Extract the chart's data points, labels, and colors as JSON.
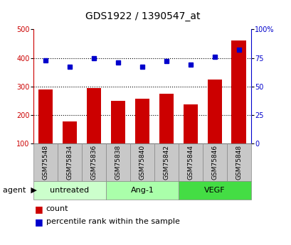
{
  "title": "GDS1922 / 1390547_at",
  "categories": [
    "GSM75548",
    "GSM75834",
    "GSM75836",
    "GSM75838",
    "GSM75840",
    "GSM75842",
    "GSM75844",
    "GSM75846",
    "GSM75848"
  ],
  "counts": [
    288,
    177,
    295,
    248,
    257,
    275,
    237,
    323,
    460
  ],
  "percentiles": [
    73,
    67,
    75,
    71,
    67,
    72,
    69,
    76,
    82
  ],
  "bar_color": "#cc0000",
  "dot_color": "#0000cc",
  "left_ylim": [
    100,
    500
  ],
  "right_ylim": [
    0,
    100
  ],
  "left_yticks": [
    100,
    200,
    300,
    400,
    500
  ],
  "right_yticks": [
    0,
    25,
    50,
    75,
    100
  ],
  "right_yticklabels": [
    "0",
    "25",
    "50",
    "75",
    "100%"
  ],
  "grid_values": [
    200,
    300,
    400
  ],
  "groups": [
    {
      "label": "untreated",
      "start": 0,
      "end": 2,
      "color": "#ccffcc"
    },
    {
      "label": "Ang-1",
      "start": 3,
      "end": 5,
      "color": "#aaffaa"
    },
    {
      "label": "VEGF",
      "start": 6,
      "end": 8,
      "color": "#44dd44"
    }
  ],
  "legend_count_label": "count",
  "legend_percentile_label": "percentile rank within the sample",
  "agent_label": "agent",
  "bar_color_gray": "#c8c8c8",
  "group_colors": [
    "#ccffcc",
    "#aaffaa",
    "#44dd44"
  ],
  "title_fontsize": 10,
  "tick_fontsize": 7,
  "label_fontsize": 6.5,
  "group_fontsize": 8,
  "legend_fontsize": 8
}
